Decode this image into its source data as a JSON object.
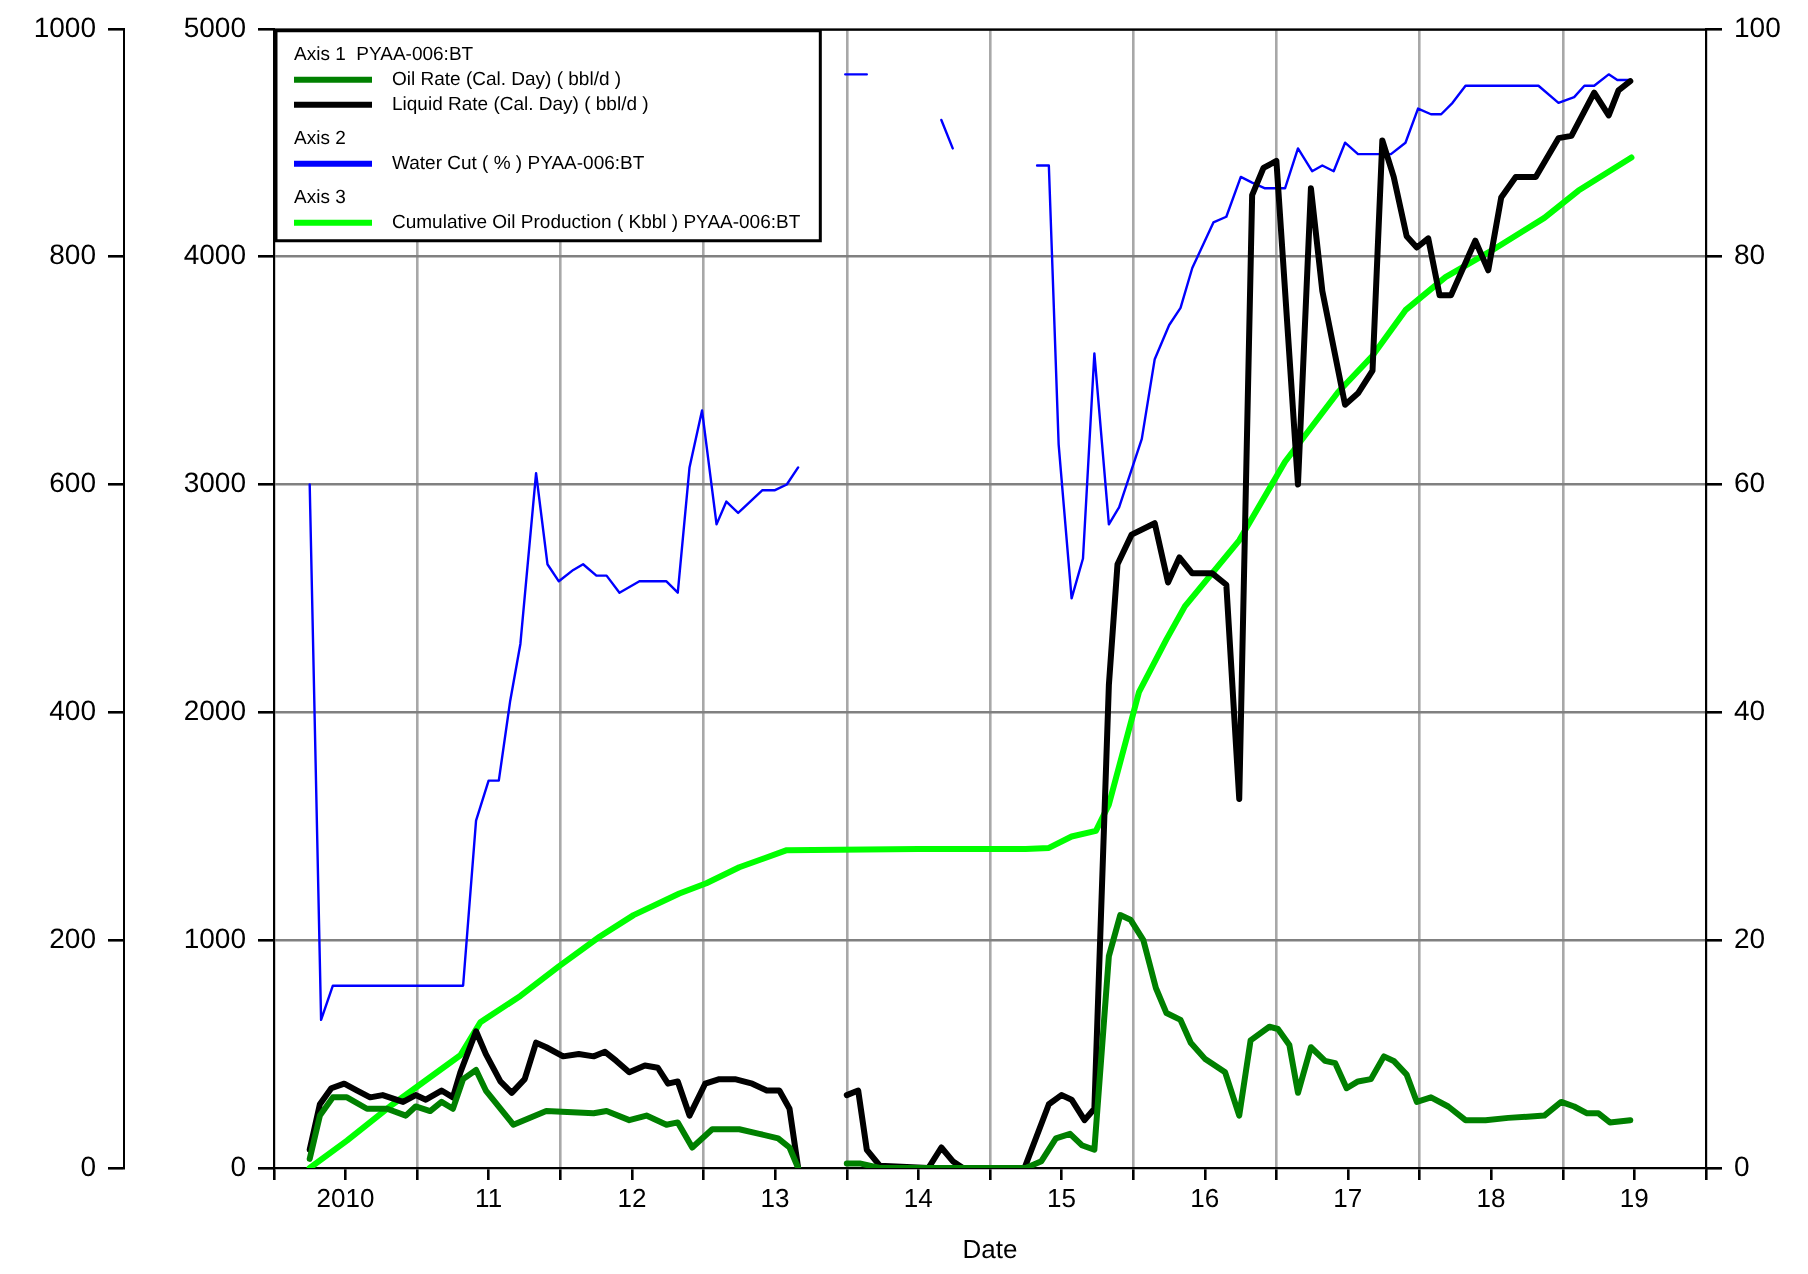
{
  "chart_data": {
    "type": "line",
    "xlabel": "Date",
    "annotations": [
      "Axis 1  PYAA-006:BT",
      "Axis 2",
      "Axis 3"
    ],
    "xlim": [
      "2010-01-01",
      "2020-01-01"
    ],
    "xticks": [
      {
        "value": "2010-01-01",
        "label": null
      },
      {
        "value": "2010-07-02",
        "label": "2010"
      },
      {
        "value": "2011-01-01",
        "label": null
      },
      {
        "value": "2011-07-02",
        "label": "11"
      },
      {
        "value": "2012-01-01",
        "label": null
      },
      {
        "value": "2012-07-02",
        "label": "12"
      },
      {
        "value": "2013-01-01",
        "label": null
      },
      {
        "value": "2013-07-02",
        "label": "13"
      },
      {
        "value": "2014-01-01",
        "label": null
      },
      {
        "value": "2014-07-02",
        "label": "14"
      },
      {
        "value": "2015-01-01",
        "label": null
      },
      {
        "value": "2015-07-02",
        "label": "15"
      },
      {
        "value": "2016-01-01",
        "label": null
      },
      {
        "value": "2016-07-02",
        "label": "16"
      },
      {
        "value": "2017-01-01",
        "label": null
      },
      {
        "value": "2017-07-02",
        "label": "17"
      },
      {
        "value": "2018-01-01",
        "label": null
      },
      {
        "value": "2018-07-02",
        "label": "18"
      },
      {
        "value": "2019-01-01",
        "label": null
      },
      {
        "value": "2019-07-02",
        "label": "19"
      },
      {
        "value": "2020-01-01",
        "label": null
      }
    ],
    "ylim": [
      0,
      5000
    ],
    "yticks": [
      0,
      1000,
      2000,
      3000,
      4000,
      5000
    ],
    "y2lim": [
      0,
      100
    ],
    "y2ticks": [
      0,
      20,
      40,
      60,
      80,
      100
    ],
    "y3lim": [
      0,
      1000
    ],
    "y3ticks": [
      0,
      200,
      400,
      600,
      800,
      1000
    ],
    "grid": true,
    "legend": "top left",
    "marker": "none",
    "series": [
      {
        "name": "Oil Rate (Cal. Day) ( bbl/d )",
        "color": "#008000",
        "axis": "y",
        "x": [
          "2010-04-02",
          "2010-04-28",
          "2010-05-31",
          "2010-07-06",
          "2010-08-26",
          "2010-10-16",
          "2010-12-03",
          "2010-12-28",
          "2011-02-03",
          "2011-03-04",
          "2011-04-02",
          "2011-04-28",
          "2011-05-31",
          "2011-06-25",
          "2011-09-03",
          "2011-11-26",
          "2012-03-26",
          "2012-04-28",
          "2012-06-25",
          "2012-08-08",
          "2012-09-28",
          "2012-10-27",
          "2012-12-03",
          "2013-01-23",
          "2013-04-02",
          "2013-05-23",
          "2013-07-10",
          "2013-08-08",
          "2013-08-30",
          "2013-10-20",
          "2014-01-01",
          "2014-02-03",
          "2014-03-26",
          "2014-07-28",
          "2015-04-02",
          "2015-05-12",
          "2015-06-18",
          "2015-07-24",
          "2015-08-23",
          "2015-09-24",
          "2015-10-31",
          "2015-11-29",
          "2015-12-25",
          "2016-01-27",
          "2016-02-28",
          "2016-03-26",
          "2016-05-01",
          "2016-05-27",
          "2016-07-02",
          "2016-08-23",
          "2016-09-28",
          "2016-10-27",
          "2016-12-14",
          "2017-01-05",
          "2017-02-03",
          "2017-02-25",
          "2017-03-30",
          "2017-05-05",
          "2017-05-31",
          "2017-06-29",
          "2017-07-28",
          "2017-08-30",
          "2017-10-02",
          "2017-10-27",
          "2017-11-29",
          "2017-12-25",
          "2018-01-30",
          "2018-03-15",
          "2018-04-28",
          "2018-06-18",
          "2018-08-15",
          "2018-11-15",
          "2018-12-28",
          "2019-01-30",
          "2019-03-04",
          "2019-04-02",
          "2019-05-01",
          "2019-06-22"
        ],
        "values": [
          40,
          230,
          310,
          310,
          260,
          260,
          230,
          270,
          250,
          290,
          260,
          390,
          430,
          340,
          190,
          250,
          240,
          250,
          210,
          230,
          190,
          200,
          90,
          170,
          170,
          150,
          130,
          90,
          0,
          null,
          20,
          20,
          0,
          0,
          0,
          30,
          130,
          150,
          100,
          80,
          930,
          1110,
          1090,
          1000,
          790,
          680,
          650,
          550,
          480,
          420,
          230,
          560,
          620,
          610,
          540,
          330,
          530,
          470,
          460,
          350,
          380,
          390,
          490,
          470,
          410,
          290,
          310,
          270,
          210,
          210,
          220,
          230,
          290,
          270,
          240,
          240,
          200,
          210
        ]
      },
      {
        "name": "Liquid Rate (Cal. Day) ( bbl/d )",
        "color": "#000000",
        "axis": "y",
        "x": [
          "2010-04-02",
          "2010-04-28",
          "2010-05-27",
          "2010-06-29",
          "2010-08-01",
          "2010-09-03",
          "2010-10-05",
          "2010-11-26",
          "2010-12-28",
          "2011-01-23",
          "2011-03-04",
          "2011-04-02",
          "2011-04-21",
          "2011-05-31",
          "2011-06-25",
          "2011-08-01",
          "2011-08-30",
          "2011-10-02",
          "2011-10-31",
          "2011-11-26",
          "2012-01-08",
          "2012-02-17",
          "2012-03-26",
          "2012-04-24",
          "2012-05-23",
          "2012-06-25",
          "2012-08-04",
          "2012-09-06",
          "2012-10-02",
          "2012-10-27",
          "2012-11-26",
          "2013-01-05",
          "2013-02-10",
          "2013-03-22",
          "2013-05-05",
          "2013-06-11",
          "2013-07-13",
          "2013-08-08",
          "2013-08-30",
          "2013-10-20",
          "2014-01-01",
          "2014-01-30",
          "2014-02-21",
          "2014-03-26",
          "2014-07-28",
          "2014-08-30",
          "2014-09-28",
          "2014-10-24",
          "2015-03-30",
          "2015-05-31",
          "2015-07-02",
          "2015-07-28",
          "2015-08-30",
          "2015-09-24",
          "2015-10-31",
          "2015-11-22",
          "2015-12-28",
          "2016-02-25",
          "2016-03-30",
          "2016-04-28",
          "2016-05-31",
          "2016-07-21",
          "2016-08-26",
          "2016-09-28",
          "2016-10-31",
          "2016-11-29",
          "2017-01-01",
          "2017-02-25",
          "2017-03-30",
          "2017-04-28",
          "2017-06-25",
          "2017-07-28",
          "2017-09-03",
          "2017-09-28",
          "2017-10-27",
          "2017-11-29",
          "2017-12-25",
          "2018-01-23",
          "2018-02-21",
          "2018-03-22",
          "2018-05-23",
          "2018-06-25",
          "2018-07-28",
          "2018-09-03",
          "2018-10-24",
          "2018-12-21",
          "2019-01-23",
          "2019-03-22",
          "2019-04-28",
          "2019-05-23",
          "2019-06-22"
        ],
        "values": [
          80,
          280,
          350,
          370,
          340,
          310,
          320,
          290,
          320,
          300,
          340,
          310,
          420,
          600,
          500,
          380,
          330,
          390,
          550,
          530,
          490,
          500,
          490,
          510,
          470,
          420,
          450,
          440,
          370,
          380,
          230,
          370,
          390,
          390,
          370,
          340,
          340,
          260,
          0,
          null,
          320,
          340,
          80,
          10,
          0,
          90,
          30,
          0,
          0,
          280,
          320,
          300,
          210,
          260,
          2120,
          2650,
          2780,
          2830,
          2570,
          2680,
          2610,
          2610,
          2560,
          1620,
          4270,
          4390,
          4420,
          3000,
          4300,
          3850,
          3350,
          3400,
          3500,
          4510,
          4350,
          4090,
          4040,
          4080,
          3830,
          3830,
          4070,
          3940,
          4260,
          4350,
          4350,
          4520,
          4530,
          4720,
          4620,
          4730,
          4770
        ]
      },
      {
        "name": "Water Cut ( % ) PYAA-006:BT",
        "color": "#0000ff",
        "axis": "y2",
        "x": [
          "2010-04-02",
          "2010-05-01",
          "2010-05-31",
          "2011-04-28",
          "2011-05-31",
          "2011-07-02",
          "2011-07-28",
          "2011-08-26",
          "2011-09-21",
          "2011-10-31",
          "2011-11-29",
          "2011-12-28",
          "2012-02-03",
          "2012-02-28",
          "2012-04-02",
          "2012-04-28",
          "2012-05-31",
          "2012-07-21",
          "2012-09-28",
          "2012-10-27",
          "2012-11-26",
          "2012-12-28",
          "2013-02-03",
          "2013-02-28",
          "2013-03-30",
          "2013-05-31",
          "2013-07-02",
          "2013-08-01",
          "2013-08-30",
          "2013-10-20",
          "2013-12-28",
          "2014-02-21",
          "2014-05-27",
          "2014-08-30",
          "2014-09-28",
          "2015-01-01",
          "2015-05-01",
          "2015-05-31",
          "2015-06-25",
          "2015-07-28",
          "2015-08-26",
          "2015-09-24",
          "2015-10-31",
          "2015-11-26",
          "2016-01-23",
          "2016-02-25",
          "2016-04-02",
          "2016-05-01",
          "2016-05-31",
          "2016-07-24",
          "2016-08-26",
          "2016-10-02",
          "2016-10-31",
          "2016-12-03",
          "2017-01-23",
          "2017-02-25",
          "2017-04-02",
          "2017-04-28",
          "2017-05-27",
          "2017-06-25",
          "2017-07-28",
          "2017-10-20",
          "2017-11-26",
          "2017-12-28",
          "2018-01-30",
          "2018-02-25",
          "2018-03-26",
          "2018-04-28",
          "2018-10-31",
          "2018-12-21",
          "2019-01-30",
          "2019-02-25",
          "2019-03-22",
          "2019-04-28",
          "2019-05-20",
          "2019-06-22"
        ],
        "values": [
          60,
          13,
          16,
          16,
          30.5,
          34,
          34,
          41,
          46,
          61,
          53,
          51.5,
          52.5,
          53,
          52,
          52,
          50.5,
          51.5,
          51.5,
          50.5,
          61.5,
          66.5,
          56.5,
          58.5,
          57.5,
          59.5,
          59.5,
          60,
          61.5,
          null,
          96,
          96,
          null,
          92,
          89.5,
          null,
          88,
          88,
          63.5,
          50,
          53.5,
          71.5,
          56.5,
          58,
          64,
          71,
          74,
          75.5,
          79,
          83,
          83.5,
          87,
          86.5,
          86,
          86,
          89.5,
          87.5,
          88,
          87.5,
          90,
          89,
          89,
          90,
          93,
          92.5,
          92.5,
          93.5,
          95,
          95,
          93.5,
          94,
          95,
          95,
          96,
          95.5,
          95.5
        ]
      },
      {
        "name": "Cumulative Oil Production ( Kbbl ) PYAA-006:BT",
        "color": "#00ff00",
        "axis": "y3",
        "x": [
          "2010-04-02",
          "2010-07-06",
          "2010-10-31",
          "2011-04-21",
          "2011-06-11",
          "2011-09-21",
          "2011-12-28",
          "2012-04-10",
          "2012-07-06",
          "2012-10-31",
          "2013-01-08",
          "2013-04-02",
          "2013-08-01",
          "2014-07-02",
          "2015-04-02",
          "2015-05-31",
          "2015-07-28",
          "2015-09-28",
          "2015-10-31",
          "2016-01-16",
          "2016-03-26",
          "2016-05-12",
          "2016-09-28",
          "2017-01-23",
          "2017-06-07",
          "2017-09-03",
          "2017-11-26",
          "2018-03-08",
          "2018-07-02",
          "2018-11-15",
          "2019-02-10",
          "2019-06-25"
        ],
        "values": [
          0,
          24,
          56,
          99,
          128,
          151,
          177,
          203,
          222,
          241,
          250,
          264,
          279,
          280,
          280,
          281,
          291,
          296,
          319,
          418,
          464,
          493,
          551,
          620,
          681,
          713,
          753,
          782,
          805,
          834,
          858,
          887
        ]
      }
    ]
  }
}
